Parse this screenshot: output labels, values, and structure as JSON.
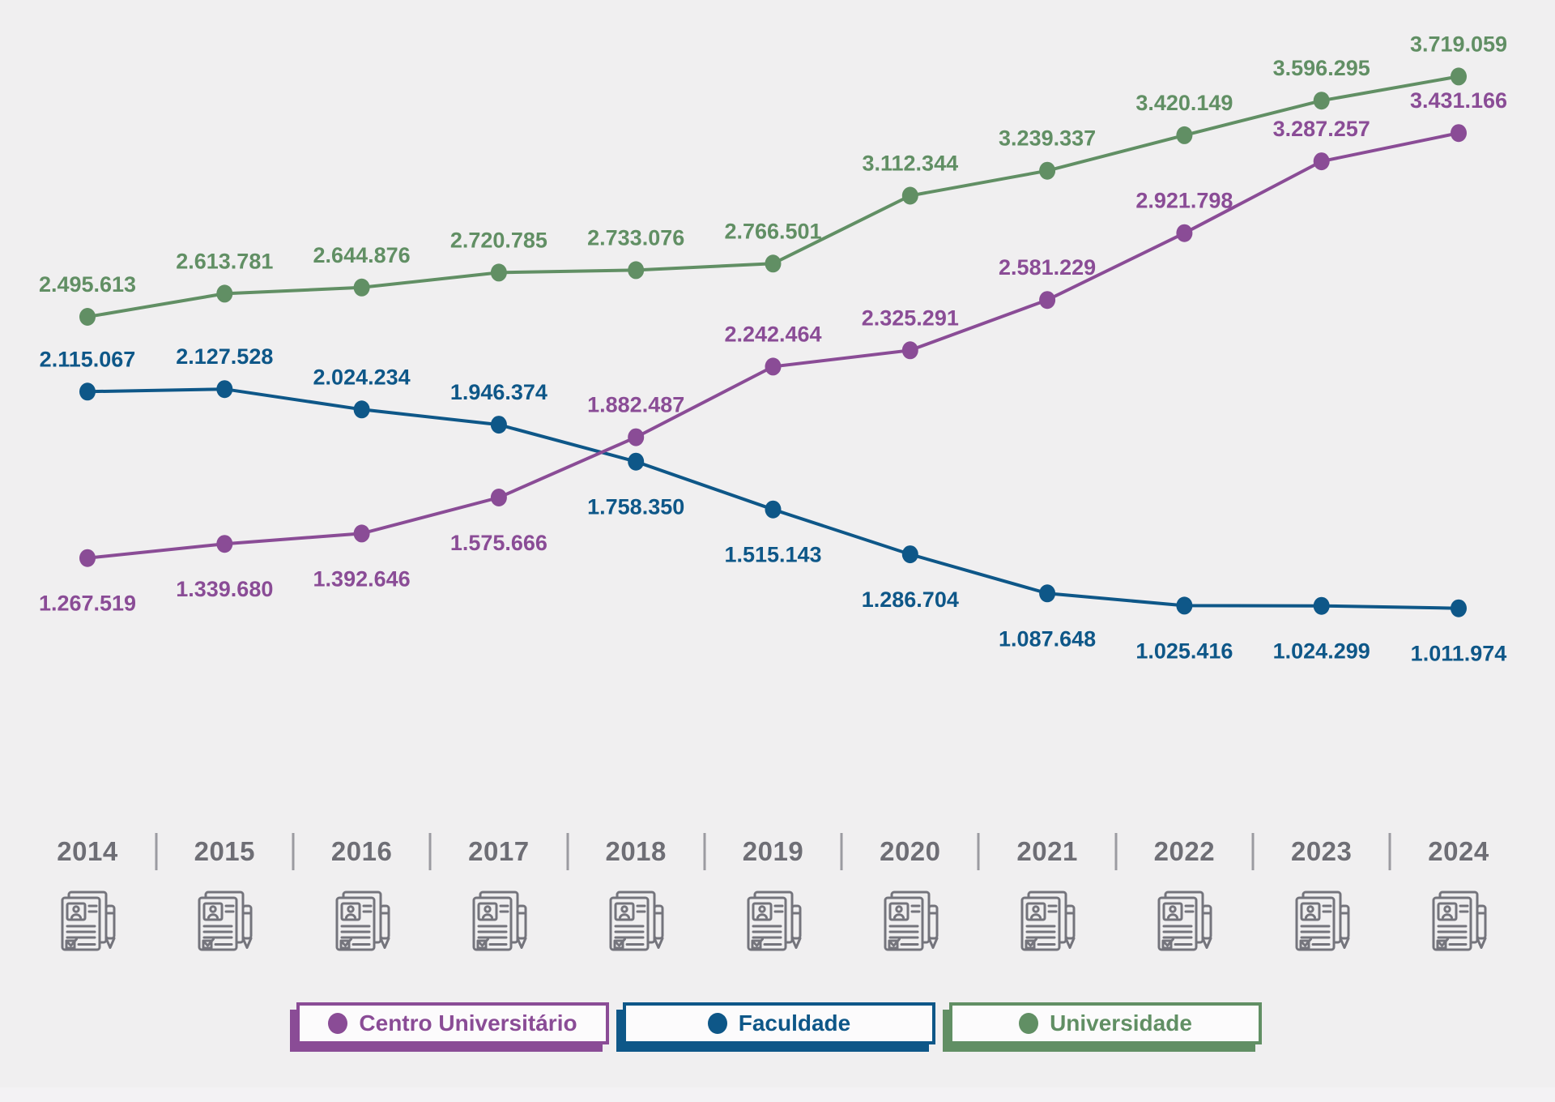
{
  "page": {
    "background_color": "#f0eff0",
    "bottom_strip_color": "#f3f2f4",
    "title": ""
  },
  "chart_data": {
    "type": "line",
    "title": "",
    "xlabel": "",
    "ylabel": "",
    "grid": false,
    "legend_position": "bottom",
    "x": [
      2014,
      2015,
      2016,
      2017,
      2018,
      2019,
      2020,
      2021,
      2022,
      2023,
      2024
    ],
    "x_labels": [
      "2014",
      "2015",
      "2016",
      "2017",
      "2018",
      "2019",
      "2020",
      "2021",
      "2022",
      "2023",
      "2024"
    ],
    "ylim": [
      950000,
      3850000
    ],
    "value_label_format": "thousands-dot (pt-BR)",
    "series": [
      {
        "name": "Centro Universitário",
        "color": "#8a4c96",
        "values": [
          1267519,
          1339680,
          1392646,
          1575666,
          1882487,
          2242464,
          2325291,
          2581229,
          2921798,
          3287257,
          3431166
        ],
        "label_sides": [
          "below",
          "below",
          "below",
          "below",
          "above",
          "above",
          "above",
          "above",
          "above",
          "above",
          "above"
        ]
      },
      {
        "name": "Faculdade",
        "color": "#0e5788",
        "values": [
          2115067,
          2127528,
          2024234,
          1946374,
          1758350,
          1515143,
          1286704,
          1087648,
          1025416,
          1024299,
          1011974
        ],
        "label_sides": [
          "above",
          "above",
          "above",
          "above",
          "below",
          "below",
          "below",
          "below",
          "below",
          "below",
          "below"
        ]
      },
      {
        "name": "Universidade",
        "color": "#618f64",
        "values": [
          2495613,
          2613781,
          2644876,
          2720785,
          2733076,
          2766501,
          3112344,
          3239337,
          3420149,
          3596295,
          3719059
        ],
        "label_sides": [
          "above",
          "above",
          "above",
          "above",
          "above",
          "above",
          "above",
          "above",
          "above",
          "above",
          "above"
        ]
      }
    ]
  },
  "x_axis": {
    "year_text_color": "#6e6e75",
    "separator_color": "#9b9ba1",
    "icon": "contract-document-with-pen",
    "icon_color": "#74747c"
  },
  "legend": {
    "items": [
      {
        "label": "Centro Universitário",
        "color": "#8a4c96"
      },
      {
        "label": "Faculdade",
        "color": "#0e5788"
      },
      {
        "label": "Universidade",
        "color": "#618f64"
      }
    ]
  }
}
